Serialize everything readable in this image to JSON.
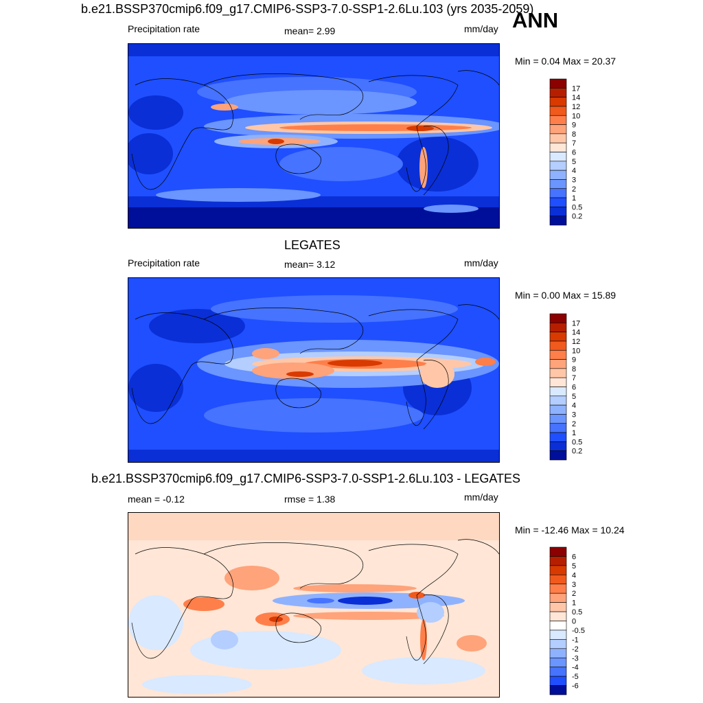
{
  "season": "ANN",
  "panels": [
    {
      "title": "b.e21.BSSP370cmip6.f09_g17.CMIP6-SSP3-7.0-SSP1-2.6Lu.103 (yrs 2035-2059)",
      "left_label": "Precipitation rate",
      "center_label": "mean=   2.99",
      "right_label": "mm/day",
      "minmax": "Min =   0.04 Max =  20.37",
      "colorbar": {
        "levels": [
          "17",
          "14",
          "12",
          "10",
          "9",
          "8",
          "7",
          "6",
          "5",
          "4",
          "3",
          "2",
          "1",
          "0.5",
          "0.2"
        ],
        "colors": [
          "#8b0000",
          "#b51f00",
          "#d83a00",
          "#f05a1c",
          "#ff7f4a",
          "#ffa37a",
          "#ffc7a8",
          "#ffe6d6",
          "#d9e9ff",
          "#b3ceff",
          "#8fb2ff",
          "#6b95ff",
          "#4673ff",
          "#1f4fff",
          "#0a2fd6",
          "#000f99"
        ]
      }
    },
    {
      "title": "LEGATES",
      "left_label": "Precipitation rate",
      "center_label": "mean=   3.12",
      "right_label": "mm/day",
      "minmax": "Min =   0.00 Max =  15.89",
      "colorbar": {
        "levels": [
          "17",
          "14",
          "12",
          "10",
          "9",
          "8",
          "7",
          "6",
          "5",
          "4",
          "3",
          "2",
          "1",
          "0.5",
          "0.2"
        ],
        "colors": [
          "#8b0000",
          "#b51f00",
          "#d83a00",
          "#f05a1c",
          "#ff7f4a",
          "#ffa37a",
          "#ffc7a8",
          "#ffe6d6",
          "#d9e9ff",
          "#b3ceff",
          "#8fb2ff",
          "#6b95ff",
          "#4673ff",
          "#1f4fff",
          "#0a2fd6",
          "#000f99"
        ]
      }
    },
    {
      "title": "b.e21.BSSP370cmip6.f09_g17.CMIP6-SSP3-7.0-SSP1-2.6Lu.103 - LEGATES",
      "left_label": "mean =  -0.12",
      "center_label": "rmse =   1.38",
      "right_label": "mm/day",
      "minmax": "Min = -12.46 Max =  10.24",
      "colorbar": {
        "levels": [
          "6",
          "5",
          "4",
          "3",
          "2",
          "1",
          "0.5",
          "0",
          "-0.5",
          "-1",
          "-2",
          "-3",
          "-4",
          "-5",
          "-6"
        ],
        "colors": [
          "#8b0000",
          "#b51f00",
          "#d83a00",
          "#f05a1c",
          "#ff7f4a",
          "#ffa37a",
          "#ffc7a8",
          "#ffe6d6",
          "#ffffff",
          "#d9e9ff",
          "#b3ceff",
          "#8fb2ff",
          "#6b95ff",
          "#4673ff",
          "#1f4fff",
          "#000f99"
        ]
      }
    }
  ],
  "chart_data": [
    {
      "type": "heatmap",
      "title": "b.e21.BSSP370cmip6.f09_g17.CMIP6-SSP3-7.0-SSP1-2.6Lu.103 (yrs 2035-2059)",
      "variable": "Precipitation rate",
      "units": "mm/day",
      "mean": 2.99,
      "min": 0.04,
      "max": 20.37,
      "contour_levels": [
        0.2,
        0.5,
        1,
        2,
        3,
        4,
        5,
        6,
        7,
        8,
        9,
        10,
        12,
        14,
        17
      ]
    },
    {
      "type": "heatmap",
      "title": "LEGATES",
      "variable": "Precipitation rate",
      "units": "mm/day",
      "mean": 3.12,
      "min": 0.0,
      "max": 15.89,
      "contour_levels": [
        0.2,
        0.5,
        1,
        2,
        3,
        4,
        5,
        6,
        7,
        8,
        9,
        10,
        12,
        14,
        17
      ]
    },
    {
      "type": "heatmap",
      "title": "b.e21.BSSP370cmip6.f09_g17.CMIP6-SSP3-7.0-SSP1-2.6Lu.103 - LEGATES",
      "units": "mm/day",
      "mean": -0.12,
      "rmse": 1.38,
      "min": -12.46,
      "max": 10.24,
      "contour_levels": [
        -6,
        -5,
        -4,
        -3,
        -2,
        -1,
        -0.5,
        0,
        0.5,
        1,
        2,
        3,
        4,
        5,
        6
      ]
    }
  ]
}
